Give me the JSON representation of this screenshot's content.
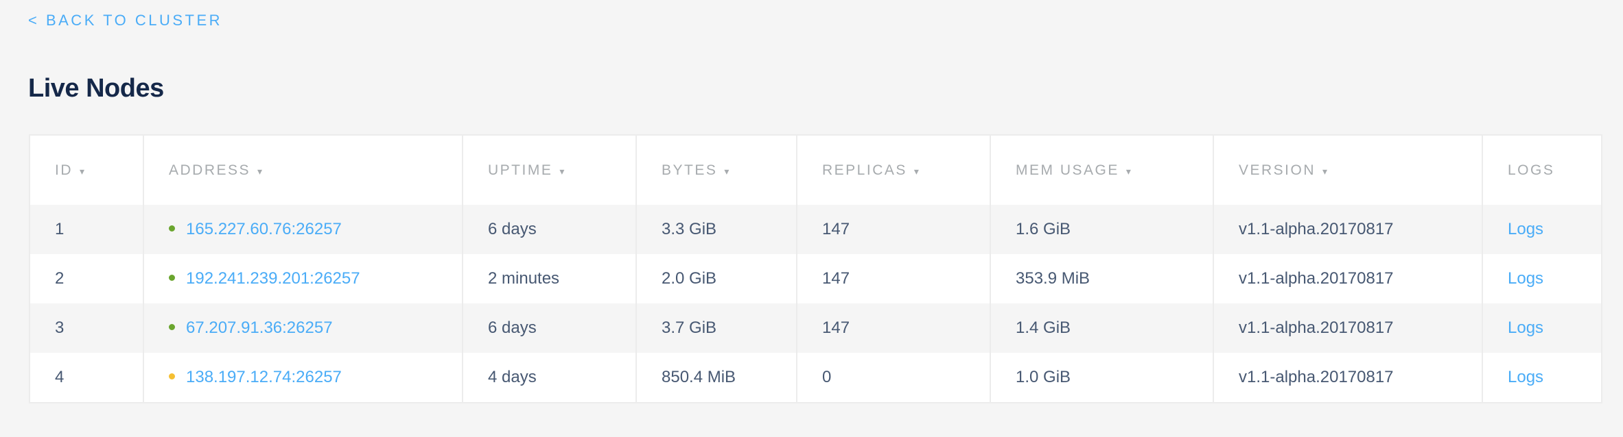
{
  "nav": {
    "back_label": "< BACK TO CLUSTER"
  },
  "page_title": "Live Nodes",
  "colors": {
    "link": "#4aacf7",
    "status_live": "#6aa52e",
    "status_suspect": "#f5bf32",
    "title": "#152849"
  },
  "table": {
    "headers": [
      {
        "label": "ID",
        "sortable": true,
        "sort_icon": "caret-down-icon"
      },
      {
        "label": "ADDRESS",
        "sortable": true,
        "sort_icon": "caret-down-icon"
      },
      {
        "label": "UPTIME",
        "sortable": true,
        "sort_icon": "caret-down-icon"
      },
      {
        "label": "BYTES",
        "sortable": true,
        "sort_icon": "caret-down-icon"
      },
      {
        "label": "REPLICAS",
        "sortable": true,
        "sort_icon": "caret-down-icon"
      },
      {
        "label": "MEM USAGE",
        "sortable": true,
        "sort_icon": "caret-down-icon"
      },
      {
        "label": "VERSION",
        "sortable": true,
        "sort_icon": "caret-down-icon"
      },
      {
        "label": "LOGS",
        "sortable": false
      }
    ],
    "sort_arrow": "▾",
    "rows": [
      {
        "id": "1",
        "status": "live",
        "status_color": "#6aa52e",
        "address": "165.227.60.76:26257",
        "uptime": "6 days",
        "bytes": "3.3 GiB",
        "replicas": "147",
        "mem_usage": "1.6 GiB",
        "version": "v1.1-alpha.20170817",
        "logs": "Logs"
      },
      {
        "id": "2",
        "status": "live",
        "status_color": "#6aa52e",
        "address": "192.241.239.201:26257",
        "uptime": "2 minutes",
        "bytes": "2.0 GiB",
        "replicas": "147",
        "mem_usage": "353.9 MiB",
        "version": "v1.1-alpha.20170817",
        "logs": "Logs"
      },
      {
        "id": "3",
        "status": "live",
        "status_color": "#6aa52e",
        "address": "67.207.91.36:26257",
        "uptime": "6 days",
        "bytes": "3.7 GiB",
        "replicas": "147",
        "mem_usage": "1.4 GiB",
        "version": "v1.1-alpha.20170817",
        "logs": "Logs"
      },
      {
        "id": "4",
        "status": "suspect",
        "status_color": "#f5bf32",
        "address": "138.197.12.74:26257",
        "uptime": "4 days",
        "bytes": "850.4 MiB",
        "replicas": "0",
        "mem_usage": "1.0 GiB",
        "version": "v1.1-alpha.20170817",
        "logs": "Logs"
      }
    ]
  }
}
